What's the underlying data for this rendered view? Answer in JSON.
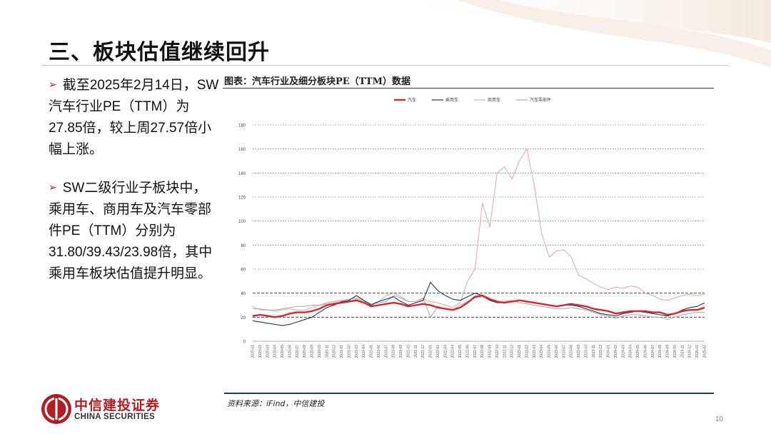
{
  "slide": {
    "title": "三、板块估值继续回升",
    "bullets": [
      "截至2025年2月14日，SW汽车行业PE（TTM）为27.85倍，较上周27.57倍小幅上涨。",
      "SW二级行业子板块中，乘用车、商用车及汽车零部件PE（TTM）分别为31.80/39.43/23.98倍，其中乘用车板块估值提升明显。"
    ],
    "chart_title": "图表：汽车行业及细分板块PE（TTM）数据",
    "source": "资料来源：iFind，中信建投",
    "page_number": "10"
  },
  "brand": {
    "name_cn": "中信建投证券",
    "name_en": "CHINA SECURITIES",
    "color": "#b01e23"
  },
  "chart_data": {
    "type": "line",
    "title": "",
    "xlabel": "",
    "ylabel": "",
    "ylim": [
      0,
      180
    ],
    "yticks": [
      0,
      20,
      40,
      60,
      80,
      100,
      120,
      140,
      160,
      180
    ],
    "x": [
      "2020-01",
      "2020-02",
      "2020-03",
      "2020-04",
      "2020-05",
      "2020-06",
      "2020-07",
      "2020-08",
      "2020-09",
      "2020-10",
      "2020-11",
      "2020-12",
      "2021-01",
      "2021-02",
      "2021-03",
      "2021-04",
      "2021-05",
      "2021-06",
      "2021-07",
      "2021-08",
      "2021-09",
      "2021-10",
      "2021-11",
      "2021-12",
      "2022-01",
      "2022-02",
      "2022-03",
      "2022-04",
      "2022-05",
      "2022-06",
      "2022-07",
      "2022-08",
      "2022-09",
      "2022-10",
      "2022-11",
      "2022-12",
      "2023-01",
      "2023-02",
      "2023-03",
      "2023-04",
      "2023-05",
      "2023-06",
      "2023-07",
      "2023-08",
      "2023-09",
      "2023-10",
      "2023-11",
      "2023-12",
      "2024-01",
      "2024-02",
      "2024-03",
      "2024-04",
      "2024-05",
      "2024-06",
      "2024-07",
      "2024-08",
      "2024-09",
      "2024-10",
      "2024-11",
      "2024-12",
      "2025-01",
      "2025-02"
    ],
    "reference_lines": [
      20,
      40
    ],
    "legend_position": "top",
    "series": [
      {
        "name": "汽车",
        "color": "#d9262b",
        "width": 2.4,
        "values": [
          21,
          22,
          21,
          20,
          21,
          23,
          24,
          24,
          25,
          27,
          30,
          31,
          32,
          33,
          34,
          32,
          29,
          30,
          31,
          32,
          31,
          29,
          30,
          31,
          30,
          28,
          27,
          26,
          28,
          32,
          37,
          38,
          35,
          33,
          32,
          33,
          34,
          33,
          32,
          31,
          30,
          29,
          30,
          31,
          30,
          29,
          27,
          26,
          25,
          23,
          24,
          25,
          25,
          25,
          24,
          24,
          22,
          23,
          25,
          26,
          26,
          28
        ]
      },
      {
        "name": "乘用车",
        "color": "#1f3864",
        "width": 1.1,
        "values": [
          17,
          16,
          15,
          14,
          13,
          14,
          16,
          18,
          20,
          24,
          28,
          30,
          33,
          34,
          38,
          34,
          30,
          33,
          35,
          37,
          33,
          30,
          32,
          34,
          49,
          42,
          38,
          35,
          34,
          37,
          40,
          38,
          34,
          32,
          32,
          33,
          34,
          33,
          32,
          31,
          30,
          29,
          30,
          30,
          29,
          27,
          25,
          23,
          22,
          21,
          23,
          24,
          25,
          24,
          23,
          22,
          21,
          23,
          26,
          28,
          29,
          32
        ]
      },
      {
        "name": "商用车",
        "color": "#e8a6a0",
        "width": 1.0,
        "values": [
          29,
          26,
          26,
          25,
          26,
          27,
          26,
          26,
          28,
          30,
          31,
          32,
          33,
          33,
          35,
          33,
          31,
          33,
          38,
          40,
          37,
          33,
          33,
          35,
          33,
          32,
          30,
          28,
          32,
          50,
          60,
          115,
          95,
          140,
          145,
          135,
          150,
          160,
          130,
          90,
          70,
          75,
          76,
          70,
          55,
          52,
          48,
          45,
          43,
          45,
          44,
          46,
          45,
          40,
          38,
          35,
          34,
          36,
          38,
          39,
          38,
          39
        ]
      },
      {
        "name": "汽车零部件",
        "color": "#a8a8a8",
        "width": 1.0,
        "values": [
          27,
          27,
          26,
          26,
          27,
          28,
          29,
          29,
          30,
          30,
          32,
          33,
          34,
          35,
          36,
          34,
          31,
          32,
          33,
          38,
          36,
          33,
          33,
          36,
          20,
          29,
          27,
          26,
          30,
          33,
          36,
          37,
          34,
          32,
          33,
          34,
          32,
          31,
          30,
          29,
          28,
          27,
          27,
          28,
          27,
          26,
          24,
          22,
          21,
          19,
          21,
          22,
          22,
          21,
          20,
          20,
          18,
          20,
          22,
          23,
          24,
          24
        ]
      }
    ]
  }
}
